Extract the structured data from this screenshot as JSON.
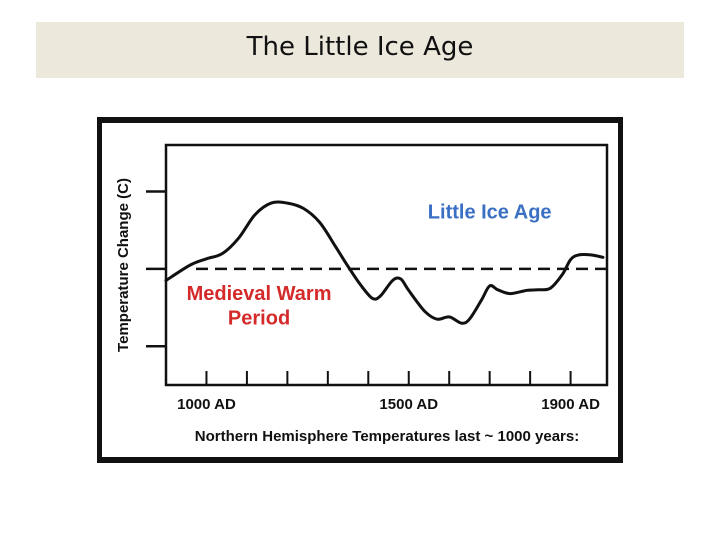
{
  "slide": {
    "title": "The Little Ice Age"
  },
  "chart_data": {
    "type": "line",
    "ylabel": "Temperature Change (C)",
    "xlabel": "Northern Hemisphere Temperatures last ~ 1000 years:",
    "tick_labels": [
      {
        "year": 1000,
        "label": "1000 AD"
      },
      {
        "year": 1500,
        "label": "1500 AD"
      },
      {
        "year": 1900,
        "label": "1900 AD"
      }
    ],
    "minor_ticks": [
      1000,
      1100,
      1200,
      1300,
      1400,
      1500,
      1600,
      1700,
      1800,
      1900
    ],
    "y_ticks": [
      1,
      0,
      -1
    ],
    "xlim": [
      900,
      1990
    ],
    "ylim": [
      -1.5,
      1.6
    ],
    "baseline": 0,
    "series": [
      {
        "color": "#111111",
        "points": [
          [
            900,
            -0.15
          ],
          [
            960,
            0.05
          ],
          [
            1000,
            0.13
          ],
          [
            1040,
            0.2
          ],
          [
            1080,
            0.4
          ],
          [
            1120,
            0.7
          ],
          [
            1160,
            0.85
          ],
          [
            1200,
            0.85
          ],
          [
            1240,
            0.78
          ],
          [
            1280,
            0.6
          ],
          [
            1320,
            0.28
          ],
          [
            1350,
            0.03
          ],
          [
            1380,
            -0.2
          ],
          [
            1410,
            -0.38
          ],
          [
            1430,
            -0.35
          ],
          [
            1460,
            -0.15
          ],
          [
            1480,
            -0.13
          ],
          [
            1500,
            -0.28
          ],
          [
            1540,
            -0.55
          ],
          [
            1570,
            -0.65
          ],
          [
            1600,
            -0.62
          ],
          [
            1630,
            -0.7
          ],
          [
            1650,
            -0.65
          ],
          [
            1680,
            -0.4
          ],
          [
            1700,
            -0.22
          ],
          [
            1720,
            -0.27
          ],
          [
            1750,
            -0.32
          ],
          [
            1790,
            -0.28
          ],
          [
            1820,
            -0.27
          ],
          [
            1850,
            -0.25
          ],
          [
            1880,
            -0.07
          ],
          [
            1900,
            0.12
          ],
          [
            1920,
            0.18
          ],
          [
            1950,
            0.18
          ],
          [
            1980,
            0.15
          ]
        ]
      }
    ],
    "annotations": [
      {
        "text": "Little Ice Age",
        "color": "#3a6fc4",
        "x": 1700,
        "y": 0.65
      },
      {
        "text": "Medieval Warm",
        "color": "#d42a2a",
        "x": 1130,
        "y": -0.4
      },
      {
        "text": "Period",
        "color": "#d42a2a",
        "x": 1130,
        "y": -0.72
      }
    ],
    "grid": false,
    "legend": "none"
  }
}
